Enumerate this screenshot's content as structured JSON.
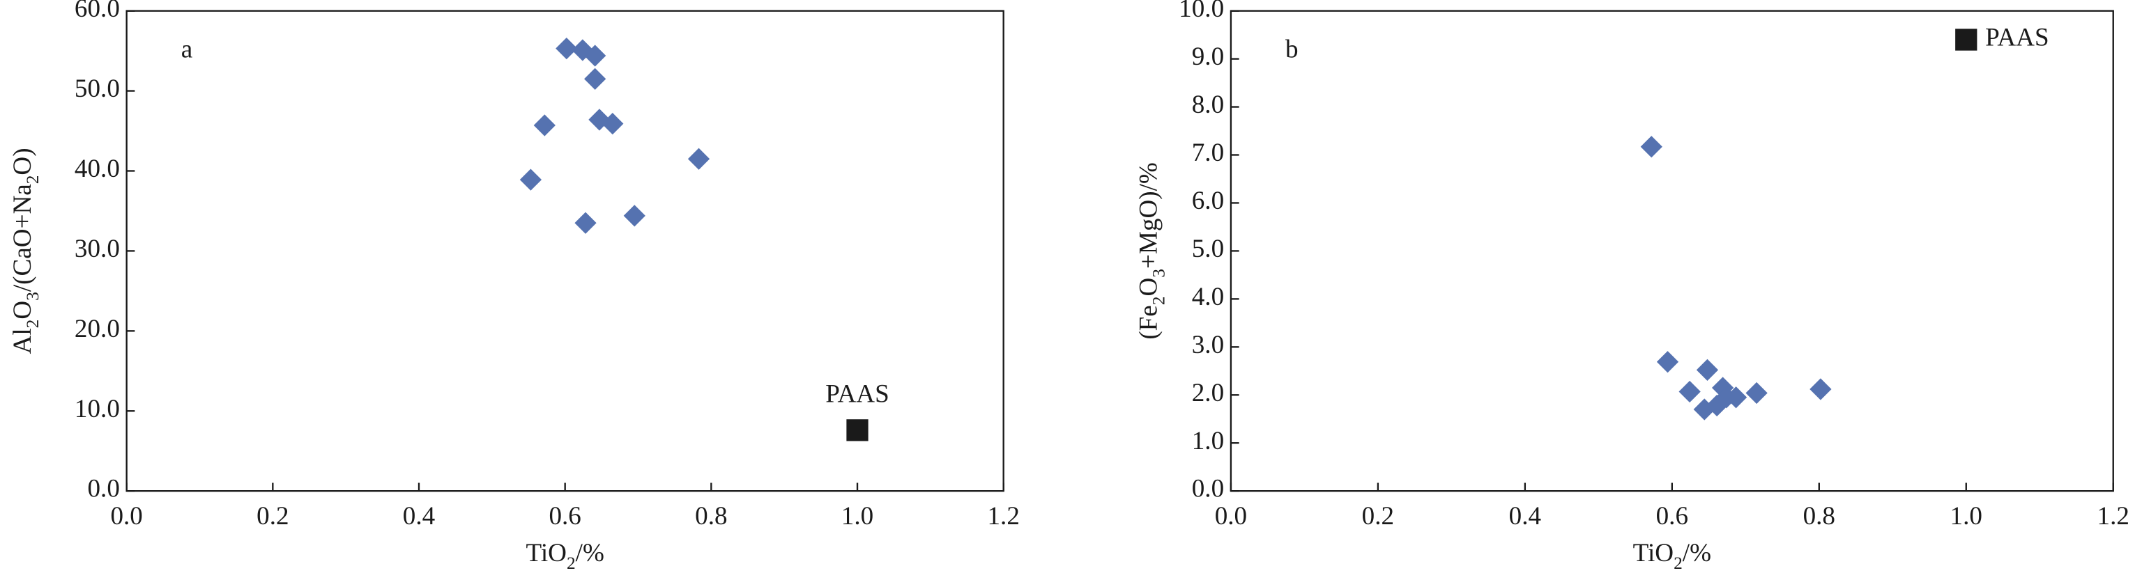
{
  "chart_data": [
    {
      "type": "scatter",
      "panel_label": "a",
      "xlabel": "TiO2/%",
      "ylabel": "Al2O3/(CaO+Na2O)",
      "xlim": [
        0,
        1.2
      ],
      "ylim": [
        0,
        60
      ],
      "xticks": [
        {
          "value": 0,
          "label": "0.0"
        },
        {
          "value": 0.2,
          "label": "0.2"
        },
        {
          "value": 0.4,
          "label": "0.4"
        },
        {
          "value": 0.6,
          "label": "0.6"
        },
        {
          "value": 0.8,
          "label": "0.8"
        },
        {
          "value": 1,
          "label": "1.0"
        },
        {
          "value": 1.2,
          "label": "1.2"
        }
      ],
      "yticks": [
        {
          "value": 0,
          "label": "0.0"
        },
        {
          "value": 10,
          "label": "10.0"
        },
        {
          "value": 20,
          "label": "20.0"
        },
        {
          "value": 30,
          "label": "30.0"
        },
        {
          "value": 40,
          "label": "40.0"
        },
        {
          "value": 50,
          "label": "50.0"
        },
        {
          "value": 60,
          "label": "60.0"
        }
      ],
      "series": [
        {
          "color": "#5572b0",
          "marker": "diamond",
          "x": [
            0.602,
            0.624,
            0.641,
            0.641,
            0.572,
            0.647,
            0.665,
            0.783,
            0.553,
            0.695,
            0.628
          ],
          "values": [
            55.3,
            55.1,
            54.4,
            51.5,
            45.7,
            46.4,
            45.9,
            41.5,
            38.9,
            34.4,
            33.5
          ]
        },
        {
          "name": "PAAS",
          "color": "#1a1a1a",
          "marker": "square",
          "label_position": "above",
          "x": [
            1.0
          ],
          "values": [
            7.6
          ]
        }
      ]
    },
    {
      "type": "scatter",
      "panel_label": "b",
      "xlabel": "TiO2/%",
      "ylabel": "(Fe2O3+MgO)/%",
      "xlim": [
        0,
        1.2
      ],
      "ylim": [
        0,
        10
      ],
      "xticks": [
        {
          "value": 0,
          "label": "0.0"
        },
        {
          "value": 0.2,
          "label": "0.2"
        },
        {
          "value": 0.4,
          "label": "0.4"
        },
        {
          "value": 0.6,
          "label": "0.6"
        },
        {
          "value": 0.8,
          "label": "0.8"
        },
        {
          "value": 1,
          "label": "1.0"
        },
        {
          "value": 1.2,
          "label": "1.2"
        }
      ],
      "yticks": [
        {
          "value": 0,
          "label": "0.0"
        },
        {
          "value": 1,
          "label": "1.0"
        },
        {
          "value": 2,
          "label": "2.0"
        },
        {
          "value": 3,
          "label": "3.0"
        },
        {
          "value": 4,
          "label": "4.0"
        },
        {
          "value": 5,
          "label": "5.0"
        },
        {
          "value": 6,
          "label": "6.0"
        },
        {
          "value": 7,
          "label": "7.0"
        },
        {
          "value": 8,
          "label": "8.0"
        },
        {
          "value": 9,
          "label": "9.0"
        },
        {
          "value": 10,
          "label": "10.0"
        }
      ],
      "series": [
        {
          "color": "#5572b0",
          "marker": "diamond",
          "x": [
            0.572,
            0.594,
            0.648,
            0.624,
            0.669,
            0.674,
            0.687,
            0.661,
            0.644,
            0.715,
            0.802
          ],
          "values": [
            7.17,
            2.69,
            2.52,
            2.07,
            2.15,
            1.95,
            1.95,
            1.78,
            1.7,
            2.04,
            2.12
          ]
        },
        {
          "name": "PAAS",
          "color": "#1a1a1a",
          "marker": "square",
          "label_position": "right",
          "x": [
            1.0
          ],
          "values": [
            9.4
          ]
        }
      ]
    }
  ]
}
